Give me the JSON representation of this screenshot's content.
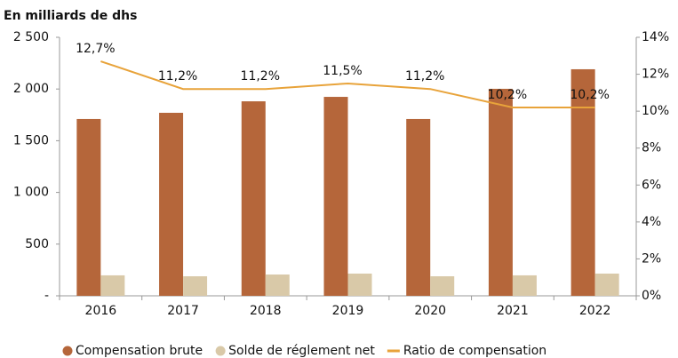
{
  "chart_data": {
    "type": "bar-line",
    "y_label": "En milliards de dhs",
    "categories": [
      "2016",
      "2017",
      "2018",
      "2019",
      "2020",
      "2021",
      "2022"
    ],
    "series": [
      {
        "name": "Compensation brute",
        "type": "bar",
        "color": "#b5663a",
        "values": [
          1710,
          1770,
          1881,
          1924,
          1710,
          2002,
          2191
        ]
      },
      {
        "name": "Solde de réglement net",
        "type": "bar",
        "color": "#d9c9a8",
        "values": [
          198,
          189,
          206,
          215,
          189,
          198,
          215
        ]
      },
      {
        "name": "Ratio de compensation",
        "type": "line",
        "axis": "y2",
        "color": "#e8a33a",
        "values": [
          12.7,
          11.2,
          11.2,
          11.5,
          11.2,
          10.2,
          10.2
        ],
        "value_labels": [
          "12,7%",
          "11,2%",
          "11,2%",
          "11,5%",
          "11,2%",
          "10,2%",
          "10,2%"
        ]
      }
    ],
    "ylim": [
      0,
      2500
    ],
    "yticks": [
      {
        "value": 0,
        "label": "-"
      },
      500,
      {
        "value": 1000,
        "label": "1 000"
      },
      {
        "value": 1500,
        "label": "1 500"
      },
      {
        "value": 2000,
        "label": "2 000"
      },
      {
        "value": 2500,
        "label": "2 500"
      }
    ],
    "y2lim": [
      0,
      14
    ],
    "y2ticks": [
      {
        "value": 0,
        "label": "0%"
      },
      {
        "value": 2,
        "label": "2%"
      },
      {
        "value": 4,
        "label": "4%"
      },
      {
        "value": 6,
        "label": "6%"
      },
      {
        "value": 8,
        "label": "8%"
      },
      {
        "value": 10,
        "label": "10%"
      },
      {
        "value": 12,
        "label": "12%"
      },
      {
        "value": 14,
        "label": "14%"
      }
    ],
    "grid": false,
    "legend": "bottom"
  }
}
